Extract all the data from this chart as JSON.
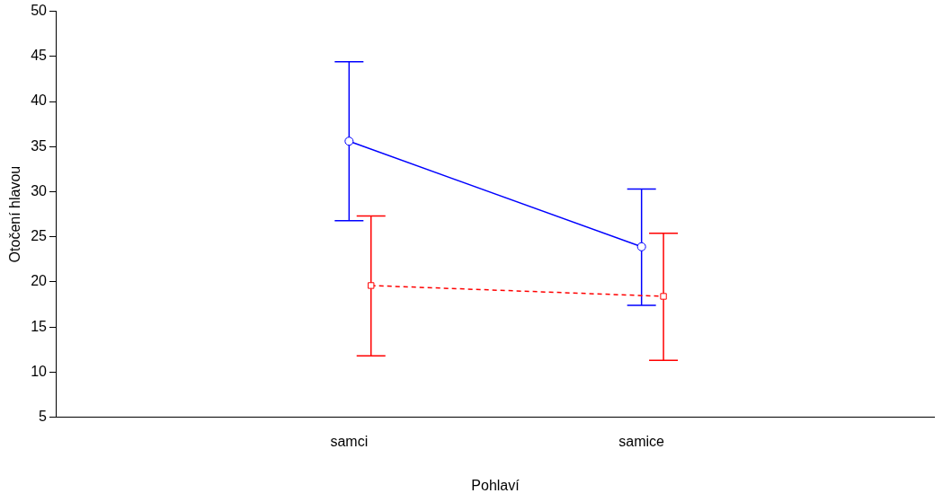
{
  "chart_data": {
    "type": "line",
    "xlabel": "Pohlaví",
    "ylabel": "Otočení hlavou",
    "categories": [
      "samci",
      "samice"
    ],
    "series": [
      {
        "color": "#0000ff",
        "values": [
          35.6,
          23.9
        ],
        "errors": [
          [
            26.8,
            44.4
          ],
          [
            17.4,
            30.3
          ]
        ],
        "marker": "circle",
        "line_style": "solid"
      },
      {
        "color": "#ff0000",
        "values": [
          19.6,
          18.4
        ],
        "errors": [
          [
            11.8,
            27.3
          ],
          [
            11.3,
            25.4
          ]
        ],
        "marker": "square",
        "line_style": "dashed"
      }
    ],
    "ylim": [
      5,
      50
    ],
    "yticks": [
      5,
      10,
      15,
      20,
      25,
      30,
      35,
      40,
      45,
      50
    ],
    "grid": false,
    "legend": false
  }
}
